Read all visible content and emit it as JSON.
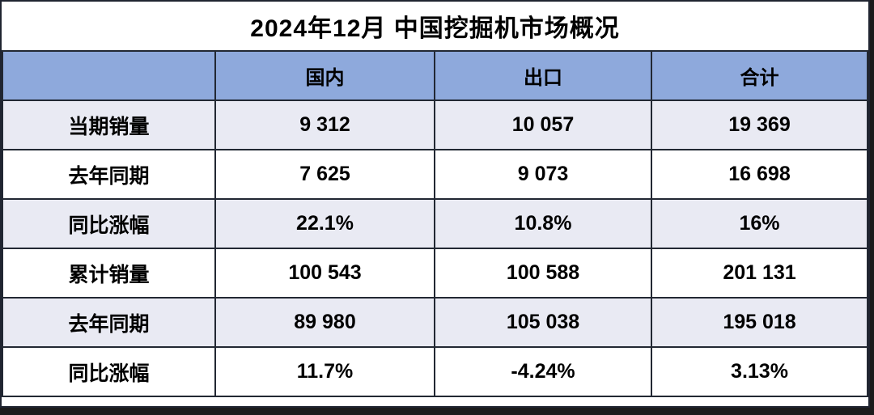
{
  "title": "2024年12月 中国挖掘机市场概况",
  "colors": {
    "header_bg": "#8EA9DC",
    "row_alt_bg": "#E9EAF3",
    "row_bg": "#FFFFFF",
    "border": "#222833",
    "shadow": "#1B1B1B",
    "text": "#000000"
  },
  "table": {
    "columns": {
      "c1": "国内",
      "c2": "出口",
      "c3": "合计"
    },
    "rows": [
      {
        "label": "当期销量",
        "values": [
          "9 312",
          "10 057",
          "19 369"
        ]
      },
      {
        "label": "去年同期",
        "values": [
          "7 625",
          "9 073",
          "16 698"
        ]
      },
      {
        "label": "同比涨幅",
        "values": [
          "22.1%",
          "10.8%",
          "16%"
        ]
      },
      {
        "label": "累计销量",
        "values": [
          "100 543",
          "100 588",
          "201 131"
        ]
      },
      {
        "label": "去年同期",
        "values": [
          "89 980",
          "105 038",
          "195 018"
        ]
      },
      {
        "label": "同比涨幅",
        "values": [
          "11.7%",
          "-4.24%",
          "3.13%"
        ]
      }
    ]
  },
  "chart_data": {
    "type": "table",
    "title": "2024年12月 中国挖掘机市场概况",
    "columns": [
      "国内",
      "出口",
      "合计"
    ],
    "row_labels": [
      "当期销量",
      "去年同期",
      "同比涨幅",
      "累计销量",
      "去年同期",
      "同比涨幅"
    ],
    "rows": [
      {
        "label": "当期销量",
        "国内": 9312,
        "出口": 10057,
        "合计": 19369
      },
      {
        "label": "去年同期",
        "国内": 7625,
        "出口": 9073,
        "合计": 16698
      },
      {
        "label": "同比涨幅",
        "国内": "22.1%",
        "出口": "10.8%",
        "合计": "16%"
      },
      {
        "label": "累计销量",
        "国内": 100543,
        "出口": 100588,
        "合计": 201131
      },
      {
        "label": "去年同期",
        "国内": 89980,
        "出口": 105038,
        "合计": 195018
      },
      {
        "label": "同比涨幅",
        "国内": "11.7%",
        "出口": "-4.24%",
        "合计": "3.13%"
      }
    ]
  }
}
